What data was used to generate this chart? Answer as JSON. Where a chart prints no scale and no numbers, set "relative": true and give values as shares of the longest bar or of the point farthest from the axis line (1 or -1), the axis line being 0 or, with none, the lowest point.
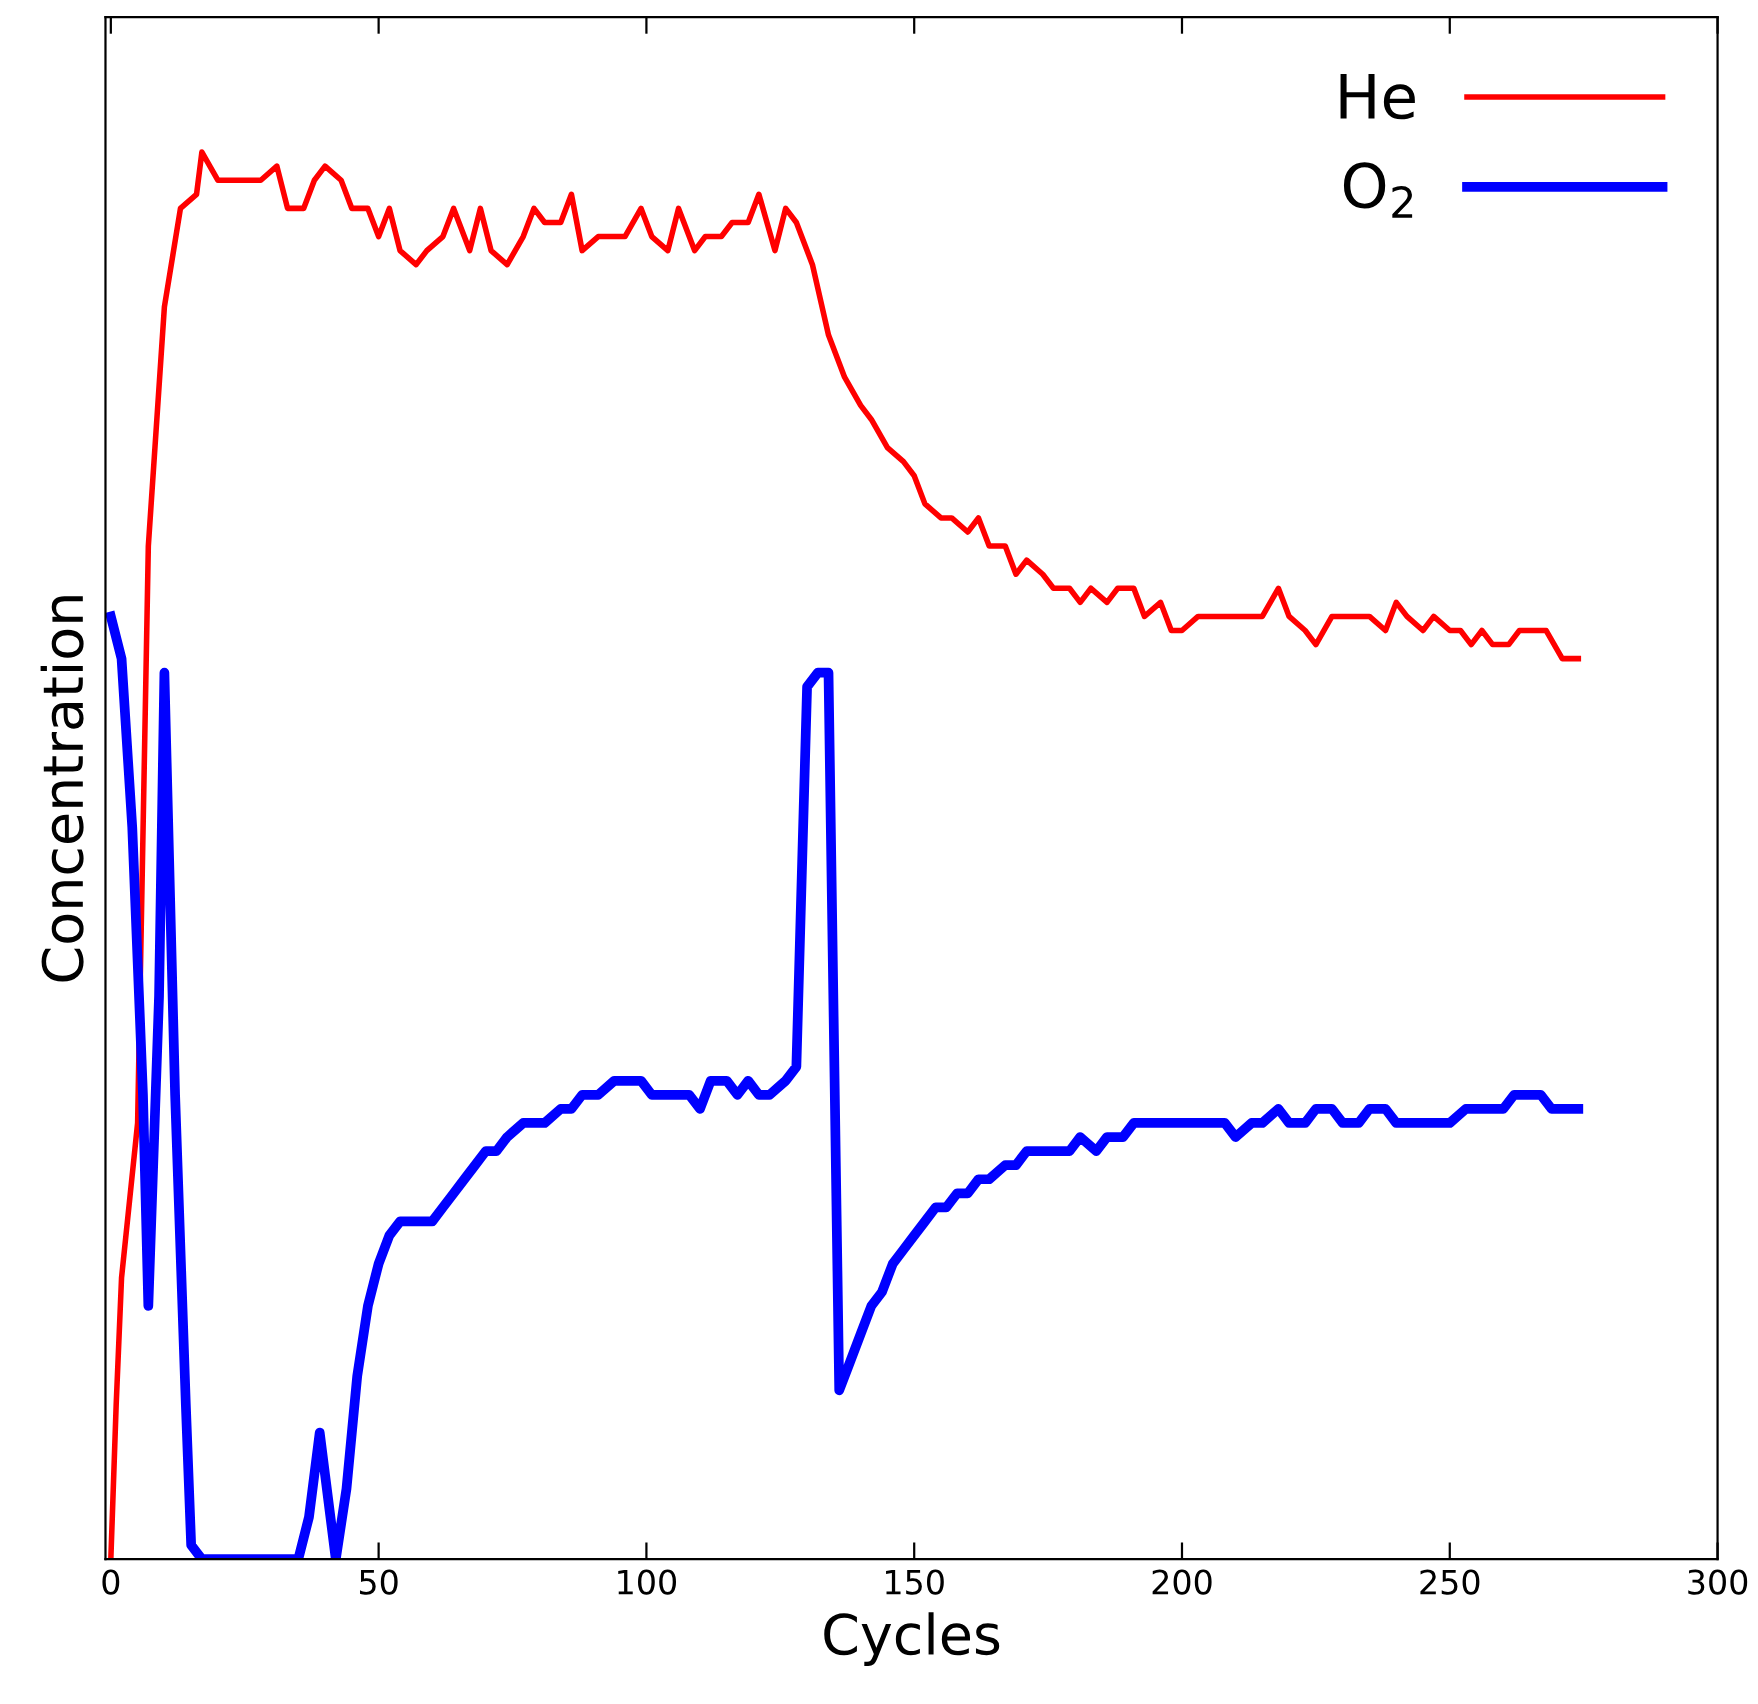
{
  "chart_data": {
    "type": "line",
    "relative": true,
    "xlabel": "Cycles",
    "ylabel": "Concentration",
    "xlim": [
      -1,
      300
    ],
    "xticks": [
      0,
      50,
      100,
      150,
      200,
      250,
      300
    ],
    "grid": false,
    "legend": "top right",
    "marker": "none",
    "line_style": "solid",
    "series": [
      {
        "name": "He",
        "color": "#ff0000",
        "x": [
          0,
          1,
          2,
          5,
          7,
          10,
          13,
          16,
          17,
          20,
          25,
          28,
          31,
          33,
          36,
          38,
          40,
          43,
          45,
          48,
          50,
          52,
          54,
          57,
          59,
          62,
          64,
          67,
          69,
          71,
          74,
          77,
          79,
          81,
          84,
          86,
          88,
          91,
          94,
          96,
          99,
          101,
          104,
          106,
          109,
          111,
          114,
          116,
          119,
          121,
          124,
          126,
          128,
          131,
          134,
          137,
          140,
          142,
          145,
          148,
          150,
          152,
          155,
          157,
          160,
          162,
          164,
          167,
          169,
          171,
          174,
          176,
          179,
          181,
          183,
          186,
          188,
          191,
          193,
          196,
          198,
          200,
          203,
          206,
          208,
          210,
          213,
          215,
          218,
          220,
          223,
          225,
          228,
          230,
          233,
          235,
          238,
          240,
          242,
          245,
          247,
          250,
          252,
          254,
          256,
          258,
          261,
          263,
          266,
          268,
          271,
          274
        ],
        "values": [
          0,
          0.11,
          0.2,
          0.31,
          0.72,
          0.89,
          0.96,
          0.97,
          1.0,
          0.98,
          0.98,
          0.98,
          0.99,
          0.96,
          0.96,
          0.98,
          0.99,
          0.98,
          0.96,
          0.96,
          0.94,
          0.96,
          0.93,
          0.92,
          0.93,
          0.94,
          0.96,
          0.93,
          0.96,
          0.93,
          0.92,
          0.94,
          0.96,
          0.95,
          0.95,
          0.97,
          0.93,
          0.94,
          0.94,
          0.94,
          0.96,
          0.94,
          0.93,
          0.96,
          0.93,
          0.94,
          0.94,
          0.95,
          0.95,
          0.97,
          0.93,
          0.96,
          0.95,
          0.92,
          0.87,
          0.84,
          0.82,
          0.81,
          0.79,
          0.78,
          0.77,
          0.75,
          0.74,
          0.74,
          0.73,
          0.74,
          0.72,
          0.72,
          0.7,
          0.71,
          0.7,
          0.69,
          0.69,
          0.68,
          0.69,
          0.68,
          0.69,
          0.69,
          0.67,
          0.68,
          0.66,
          0.66,
          0.67,
          0.67,
          0.67,
          0.67,
          0.67,
          0.67,
          0.69,
          0.67,
          0.66,
          0.65,
          0.67,
          0.67,
          0.67,
          0.67,
          0.66,
          0.68,
          0.67,
          0.66,
          0.67,
          0.66,
          0.66,
          0.65,
          0.66,
          0.65,
          0.65,
          0.66,
          0.66,
          0.66,
          0.64,
          0.64
        ]
      },
      {
        "name": "O$_{2}$",
        "color": "#0000ff",
        "x": [
          0,
          2,
          4,
          6,
          7,
          9,
          10,
          12,
          14,
          15,
          17,
          20,
          25,
          30,
          33,
          35,
          37,
          39,
          40,
          42,
          44,
          46,
          48,
          50,
          52,
          54,
          56,
          58,
          60,
          62,
          64,
          66,
          68,
          70,
          72,
          74,
          77,
          79,
          81,
          84,
          86,
          88,
          91,
          94,
          96,
          99,
          101,
          104,
          106,
          108,
          110,
          112,
          115,
          117,
          119,
          121,
          123,
          126,
          128,
          130,
          132,
          134,
          136,
          138,
          140,
          142,
          144,
          146,
          148,
          150,
          152,
          154,
          156,
          158,
          160,
          162,
          164,
          167,
          169,
          171,
          174,
          176,
          179,
          181,
          184,
          186,
          189,
          191,
          194,
          196,
          199,
          201,
          203,
          206,
          208,
          210,
          213,
          215,
          218,
          220,
          223,
          225,
          228,
          230,
          233,
          235,
          238,
          240,
          243,
          245,
          248,
          250,
          253,
          255,
          258,
          260,
          262,
          265,
          267,
          269,
          271,
          274
        ],
        "values": [
          0.67,
          0.64,
          0.52,
          0.33,
          0.18,
          0.4,
          0.63,
          0.33,
          0.11,
          0.01,
          0,
          0,
          0,
          0,
          0,
          0,
          0.03,
          0.09,
          0.06,
          0,
          0.05,
          0.13,
          0.18,
          0.21,
          0.23,
          0.24,
          0.24,
          0.24,
          0.24,
          0.25,
          0.26,
          0.27,
          0.28,
          0.29,
          0.29,
          0.3,
          0.31,
          0.31,
          0.31,
          0.32,
          0.32,
          0.33,
          0.33,
          0.34,
          0.34,
          0.34,
          0.33,
          0.33,
          0.33,
          0.33,
          0.32,
          0.34,
          0.34,
          0.33,
          0.34,
          0.33,
          0.33,
          0.34,
          0.35,
          0.62,
          0.63,
          0.63,
          0.12,
          0.14,
          0.16,
          0.18,
          0.19,
          0.21,
          0.22,
          0.23,
          0.24,
          0.25,
          0.25,
          0.26,
          0.26,
          0.27,
          0.27,
          0.28,
          0.28,
          0.29,
          0.29,
          0.29,
          0.29,
          0.3,
          0.29,
          0.3,
          0.3,
          0.31,
          0.31,
          0.31,
          0.31,
          0.31,
          0.31,
          0.31,
          0.31,
          0.3,
          0.31,
          0.31,
          0.32,
          0.31,
          0.31,
          0.32,
          0.32,
          0.31,
          0.31,
          0.32,
          0.32,
          0.31,
          0.31,
          0.31,
          0.31,
          0.31,
          0.32,
          0.32,
          0.32,
          0.32,
          0.33,
          0.33,
          0.33,
          0.32,
          0.32,
          0.32
        ]
      }
    ]
  }
}
